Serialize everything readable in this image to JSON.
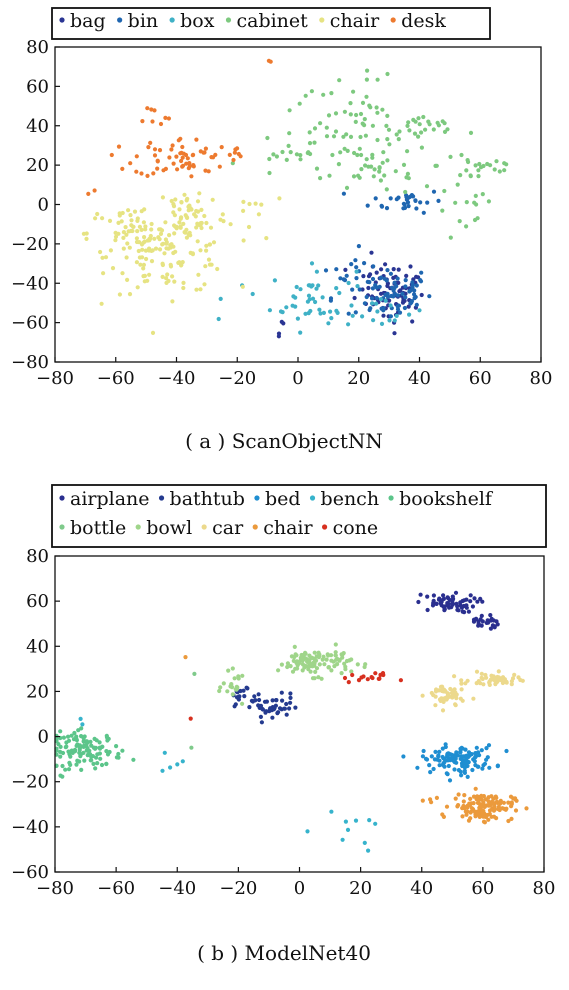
{
  "chart_data": [
    {
      "type": "scatter",
      "caption": "( a ) ScanObjectNN",
      "xlim": [
        -80,
        80
      ],
      "ylim": [
        -80,
        80
      ],
      "xticks": [
        -80,
        -60,
        -40,
        -20,
        0,
        20,
        40,
        60,
        80
      ],
      "yticks": [
        -80,
        -60,
        -40,
        -20,
        0,
        20,
        40,
        60,
        80
      ],
      "legend_position": "top",
      "grid": false,
      "series": [
        {
          "name": "bag",
          "color": "#2a3593",
          "clusters": [
            {
              "cx": 33,
              "cy": -47,
              "sx": 4,
              "sy": 7,
              "n": 45
            },
            {
              "cx": 28,
              "cy": -42,
              "sx": 6,
              "sy": 7,
              "n": 35
            },
            {
              "cx": -5,
              "cy": -62,
              "sx": 3,
              "sy": 4,
              "n": 4
            }
          ]
        },
        {
          "name": "bin",
          "color": "#1f66b0",
          "clusters": [
            {
              "cx": 30,
              "cy": -45,
              "sx": 7,
              "sy": 7,
              "n": 70
            },
            {
              "cx": 36,
              "cy": 2,
              "sx": 6,
              "sy": 3,
              "n": 30
            },
            {
              "cx": 16,
              "cy": -35,
              "sx": 5,
              "sy": 6,
              "n": 15
            }
          ]
        },
        {
          "name": "box",
          "color": "#3fb1c6",
          "clusters": [
            {
              "cx": 5,
              "cy": -48,
              "sx": 7,
              "sy": 8,
              "n": 45
            },
            {
              "cx": 30,
              "cy": -55,
              "sx": 6,
              "sy": 4,
              "n": 15
            },
            {
              "cx": -22,
              "cy": -48,
              "sx": 4,
              "sy": 3,
              "n": 4
            }
          ]
        },
        {
          "name": "cabinet",
          "color": "#7dc97f",
          "clusters": [
            {
              "cx": 20,
              "cy": 40,
              "sx": 10,
              "sy": 12,
              "n": 60
            },
            {
              "cx": 42,
              "cy": 38,
              "sx": 6,
              "sy": 4,
              "n": 20
            },
            {
              "cx": 60,
              "cy": 20,
              "sx": 7,
              "sy": 5,
              "n": 25
            },
            {
              "cx": 28,
              "cy": 18,
              "sx": 8,
              "sy": 7,
              "n": 25
            },
            {
              "cx": 55,
              "cy": -5,
              "sx": 5,
              "sy": 8,
              "n": 15
            },
            {
              "cx": 5,
              "cy": 30,
              "sx": 10,
              "sy": 10,
              "n": 20
            },
            {
              "cx": -5,
              "cy": 20,
              "sx": 6,
              "sy": 4,
              "n": 10
            }
          ]
        },
        {
          "name": "chair",
          "color": "#e6e382",
          "clusters": [
            {
              "cx": -42,
              "cy": -25,
              "sx": 10,
              "sy": 10,
              "n": 110
            },
            {
              "cx": -55,
              "cy": -15,
              "sx": 7,
              "sy": 7,
              "n": 60
            },
            {
              "cx": -35,
              "cy": -5,
              "sx": 6,
              "sy": 8,
              "n": 50
            },
            {
              "cx": -15,
              "cy": 0,
              "sx": 6,
              "sy": 4,
              "n": 8
            }
          ]
        },
        {
          "name": "desk",
          "color": "#ed7a2f",
          "clusters": [
            {
              "cx": -38,
              "cy": 24,
              "sx": 8,
              "sy": 5,
              "n": 60
            },
            {
              "cx": -48,
              "cy": 45,
              "sx": 3,
              "sy": 3,
              "n": 8
            },
            {
              "cx": -22,
              "cy": 26,
              "sx": 2,
              "sy": 3,
              "n": 5
            },
            {
              "cx": -10,
              "cy": 72,
              "sx": 1,
              "sy": 1,
              "n": 2
            },
            {
              "cx": -68,
              "cy": 6,
              "sx": 1,
              "sy": 1,
              "n": 2
            }
          ]
        }
      ]
    },
    {
      "type": "scatter",
      "caption": "( b ) ModelNet40",
      "xlim": [
        -80,
        80
      ],
      "ylim": [
        -60,
        80
      ],
      "xticks": [
        -80,
        -60,
        -40,
        -20,
        0,
        20,
        40,
        60,
        80
      ],
      "yticks": [
        -60,
        -40,
        -20,
        0,
        20,
        40,
        60,
        80
      ],
      "legend_position": "top",
      "grid": false,
      "series": [
        {
          "name": "airplane",
          "color": "#2a2f8f",
          "clusters": [
            {
              "cx": 48,
              "cy": 59,
              "sx": 5,
              "sy": 2,
              "n": 60
            },
            {
              "cx": 61,
              "cy": 51,
              "sx": 2,
              "sy": 2,
              "n": 25
            }
          ]
        },
        {
          "name": "bathtub",
          "color": "#243a8f",
          "clusters": [
            {
              "cx": -10,
              "cy": 13,
              "sx": 5,
              "sy": 3,
              "n": 50
            },
            {
              "cx": -19,
              "cy": 18,
              "sx": 2,
              "sy": 2,
              "n": 12
            }
          ]
        },
        {
          "name": "bed",
          "color": "#1f8ed1",
          "clusters": [
            {
              "cx": 52,
              "cy": -10,
              "sx": 6,
              "sy": 3,
              "n": 120
            }
          ]
        },
        {
          "name": "bench",
          "color": "#36b3cc",
          "clusters": [
            {
              "cx": 20,
              "cy": -40,
              "sx": 6,
              "sy": 3,
              "n": 6
            },
            {
              "cx": -45,
              "cy": -12,
              "sx": 4,
              "sy": 3,
              "n": 5
            },
            {
              "cx": 5,
              "cy": -47,
              "sx": 10,
              "sy": 3,
              "n": 4
            },
            {
              "cx": -70,
              "cy": 8,
              "sx": 2,
              "sy": 1,
              "n": 2
            }
          ]
        },
        {
          "name": "bookshelf",
          "color": "#5cc58a",
          "clusters": [
            {
              "cx": -70,
              "cy": -6,
              "sx": 6,
              "sy": 4,
              "n": 120
            }
          ]
        },
        {
          "name": "bottle",
          "color": "#7fca8b",
          "clusters": [
            {
              "cx": -35,
              "cy": -6,
              "sx": 1,
              "sy": 1,
              "n": 1
            },
            {
              "cx": -32,
              "cy": 28,
              "sx": 1,
              "sy": 1,
              "n": 1
            }
          ]
        },
        {
          "name": "bowl",
          "color": "#9fd58a",
          "clusters": [
            {
              "cx": 5,
              "cy": 33,
              "sx": 6,
              "sy": 3,
              "n": 110
            },
            {
              "cx": -21,
              "cy": 22,
              "sx": 2,
              "sy": 3,
              "n": 20
            }
          ]
        },
        {
          "name": "car",
          "color": "#ecd98c",
          "clusters": [
            {
              "cx": 48,
              "cy": 18,
              "sx": 3,
              "sy": 3,
              "n": 50
            },
            {
              "cx": 64,
              "cy": 25,
              "sx": 4,
              "sy": 1.5,
              "n": 50
            }
          ]
        },
        {
          "name": "chair",
          "color": "#eb9a3c",
          "clusters": [
            {
              "cx": 60,
              "cy": -31,
              "sx": 5,
              "sy": 3,
              "n": 130
            },
            {
              "cx": 42,
              "cy": -28,
              "sx": 2,
              "sy": 1,
              "n": 3
            },
            {
              "cx": -38,
              "cy": 36,
              "sx": 1,
              "sy": 1,
              "n": 1
            }
          ]
        },
        {
          "name": "cone",
          "color": "#d7301f",
          "clusters": [
            {
              "cx": 22,
              "cy": 26,
              "sx": 4,
              "sy": 1,
              "n": 16
            },
            {
              "cx": -37,
              "cy": 8,
              "sx": 1,
              "sy": 1,
              "n": 1
            }
          ]
        }
      ]
    }
  ]
}
